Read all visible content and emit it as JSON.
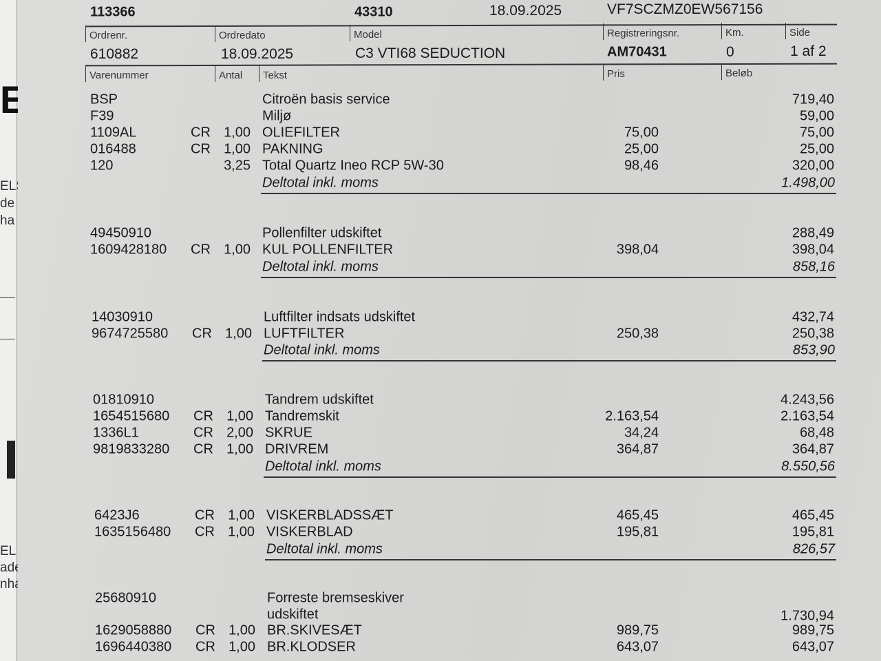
{
  "margin_fragments": {
    "big": "E",
    "lines": [
      "ELS",
      "de",
      "ha",
      "EL",
      "ade",
      "nha"
    ]
  },
  "header": {
    "top": {
      "customer_no": "113366",
      "field2": "43310",
      "date": "18.09.2025",
      "vin": "VF7SCZMZ0EW567156"
    },
    "labels": {
      "order_no": "Ordrenr.",
      "order_date": "Ordredato",
      "model": "Model",
      "reg_no": "Registreringsnr.",
      "km": "Km.",
      "page": "Side"
    },
    "values": {
      "order_no": "610882",
      "order_date": "18.09.2025",
      "model": "C3 VTI68 SEDUCTION",
      "reg_no": "AM70431",
      "km": "0",
      "page": "1 af 2"
    },
    "columns": {
      "item_no": "Varenummer",
      "qty": "Antal",
      "text": "Tekst",
      "price": "Pris",
      "amount": "Beløb"
    }
  },
  "groups": [
    {
      "rows": [
        {
          "nr": "BSP",
          "unit": "",
          "qty": "",
          "text": "Citroën basis service",
          "price": "",
          "amount": "719,40"
        },
        {
          "nr": "F39",
          "unit": "",
          "qty": "",
          "text": "Miljø",
          "price": "",
          "amount": "59,00"
        },
        {
          "nr": "1109AL",
          "unit": "CR",
          "qty": "1,00",
          "text": "OLIEFILTER",
          "price": "75,00",
          "amount": "75,00"
        },
        {
          "nr": "016488",
          "unit": "CR",
          "qty": "1,00",
          "text": "PAKNING",
          "price": "25,00",
          "amount": "25,00"
        },
        {
          "nr": "120",
          "unit": "",
          "qty": "3,25",
          "text": "Total Quartz Ineo RCP 5W-30",
          "price": "98,46",
          "amount": "320,00"
        }
      ],
      "subtotal_label": "Deltotal inkl. moms",
      "subtotal": "1.498,00"
    },
    {
      "rows": [
        {
          "nr": "49450910",
          "unit": "",
          "qty": "",
          "text": "Pollenfilter udskiftet",
          "price": "",
          "amount": "288,49"
        },
        {
          "nr": "1609428180",
          "unit": "CR",
          "qty": "1,00",
          "text": "KUL POLLENFILTER",
          "price": "398,04",
          "amount": "398,04"
        }
      ],
      "subtotal_label": "Deltotal inkl. moms",
      "subtotal": "858,16"
    },
    {
      "rows": [
        {
          "nr": "14030910",
          "unit": "",
          "qty": "",
          "text": "Luftfilter indsats udskiftet",
          "price": "",
          "amount": "432,74"
        },
        {
          "nr": "9674725580",
          "unit": "CR",
          "qty": "1,00",
          "text": "LUFTFILTER",
          "price": "250,38",
          "amount": "250,38"
        }
      ],
      "subtotal_label": "Deltotal inkl. moms",
      "subtotal": "853,90"
    },
    {
      "rows": [
        {
          "nr": "01810910",
          "unit": "",
          "qty": "",
          "text": "Tandrem udskiftet",
          "price": "",
          "amount": "4.243,56"
        },
        {
          "nr": "1654515680",
          "unit": "CR",
          "qty": "1,00",
          "text": "Tandremskit",
          "price": "2.163,54",
          "amount": "2.163,54"
        },
        {
          "nr": "1336L1",
          "unit": "CR",
          "qty": "2,00",
          "text": "SKRUE",
          "price": "34,24",
          "amount": "68,48"
        },
        {
          "nr": "9819833280",
          "unit": "CR",
          "qty": "1,00",
          "text": "DRIVREM",
          "price": "364,87",
          "amount": "364,87"
        }
      ],
      "subtotal_label": "Deltotal inkl. moms",
      "subtotal": "8.550,56"
    },
    {
      "rows": [
        {
          "nr": "6423J6",
          "unit": "CR",
          "qty": "1,00",
          "text": "VISKERBLADSSÆT",
          "price": "465,45",
          "amount": "465,45"
        },
        {
          "nr": "1635156480",
          "unit": "CR",
          "qty": "1,00",
          "text": "VISKERBLAD",
          "price": "195,81",
          "amount": "195,81"
        }
      ],
      "subtotal_label": "Deltotal inkl. moms",
      "subtotal": "826,57"
    },
    {
      "rows": [
        {
          "nr": "25680910",
          "unit": "",
          "qty": "",
          "text": "Forreste bremseskiver",
          "price": "",
          "amount": ""
        },
        {
          "nr": "",
          "unit": "",
          "qty": "",
          "text": "udskiftet",
          "price": "",
          "amount": "1.730,94"
        },
        {
          "nr": "1629058880",
          "unit": "CR",
          "qty": "1,00",
          "text": "BR.SKIVESÆT",
          "price": "989,75",
          "amount": "989,75"
        },
        {
          "nr": "1696440380",
          "unit": "CR",
          "qty": "1,00",
          "text": "BR.KLODSER",
          "price": "643,07",
          "amount": "643,07"
        }
      ],
      "subtotal_label": "",
      "subtotal": ""
    }
  ]
}
